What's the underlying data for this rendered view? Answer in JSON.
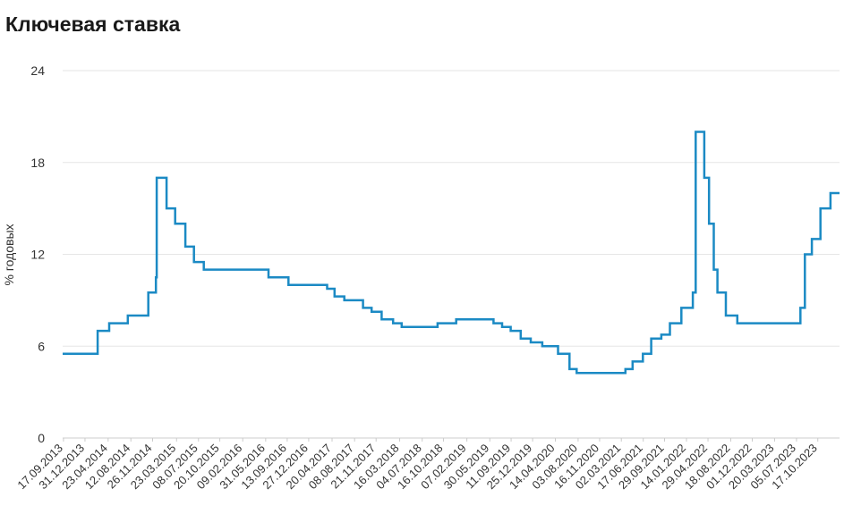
{
  "page": {
    "title": "Ключевая ставка"
  },
  "colors": {
    "line": "#1b8ac4",
    "grid": "#e6e6e6",
    "axis": "#cccccc",
    "text": "#333333"
  },
  "chart_data": {
    "type": "line",
    "step": true,
    "title": "Ключевая ставка",
    "xlabel": "",
    "ylabel": "% годовых",
    "ylim": [
      0,
      24
    ],
    "yticks": [
      0,
      6,
      12,
      18,
      24
    ],
    "grid": true,
    "legend": "none",
    "x_range": [
      "2013-09-13",
      "2024-01-31"
    ],
    "xticks": [
      "17.09.2013",
      "31.12.2013",
      "23.04.2014",
      "12.08.2014",
      "26.11.2014",
      "23.03.2015",
      "08.07.2015",
      "20.10.2015",
      "09.02.2016",
      "31.05.2016",
      "13.09.2016",
      "27.12.2016",
      "20.04.2017",
      "08.08.2017",
      "21.11.2017",
      "16.03.2018",
      "04.07.2018",
      "16.10.2018",
      "07.02.2019",
      "30.05.2019",
      "11.09.2019",
      "25.12.2019",
      "14.04.2020",
      "03.08.2020",
      "16.11.2020",
      "02.03.2021",
      "17.06.2021",
      "29.09.2021",
      "14.01.2022",
      "29.04.2022",
      "18.08.2022",
      "01.12.2022",
      "20.03.2023",
      "05.07.2023",
      "17.10.2023"
    ],
    "series": [
      {
        "x": [
          "2013-09-13",
          "2014-03-03",
          "2014-04-28",
          "2014-07-28",
          "2014-11-05",
          "2014-12-12",
          "2014-12-16",
          "2015-02-02",
          "2015-03-16",
          "2015-05-05",
          "2015-06-16",
          "2015-08-03",
          "2016-06-14",
          "2016-09-19",
          "2017-03-27",
          "2017-05-02",
          "2017-06-19",
          "2017-09-18",
          "2017-10-30",
          "2017-12-18",
          "2018-02-12",
          "2018-03-26",
          "2018-09-17",
          "2018-12-17",
          "2019-06-17",
          "2019-07-29",
          "2019-09-09",
          "2019-10-28",
          "2019-12-16",
          "2020-02-10",
          "2020-04-27",
          "2020-06-22",
          "2020-07-27",
          "2021-03-22",
          "2021-04-26",
          "2021-06-15",
          "2021-07-26",
          "2021-09-13",
          "2021-10-25",
          "2021-12-20",
          "2022-02-14",
          "2022-02-28",
          "2022-04-11",
          "2022-05-04",
          "2022-05-27",
          "2022-06-14",
          "2022-07-25",
          "2022-09-19",
          "2023-07-24",
          "2023-08-15",
          "2023-09-18",
          "2023-10-30",
          "2023-12-18",
          "2024-01-31"
        ],
        "y": [
          5.5,
          7,
          7.5,
          8,
          9.5,
          10.5,
          17,
          15,
          14,
          12.5,
          11.5,
          11,
          10.5,
          10,
          9.75,
          9.25,
          9,
          8.5,
          8.25,
          7.75,
          7.5,
          7.25,
          7.5,
          7.75,
          7.5,
          7.25,
          7,
          6.5,
          6.25,
          6,
          5.5,
          4.5,
          4.25,
          4.5,
          5,
          5.5,
          6.5,
          6.75,
          7.5,
          8.5,
          9.5,
          20,
          17,
          14,
          11,
          9.5,
          8,
          7.5,
          8.5,
          12,
          13,
          15,
          16,
          16
        ]
      }
    ]
  }
}
